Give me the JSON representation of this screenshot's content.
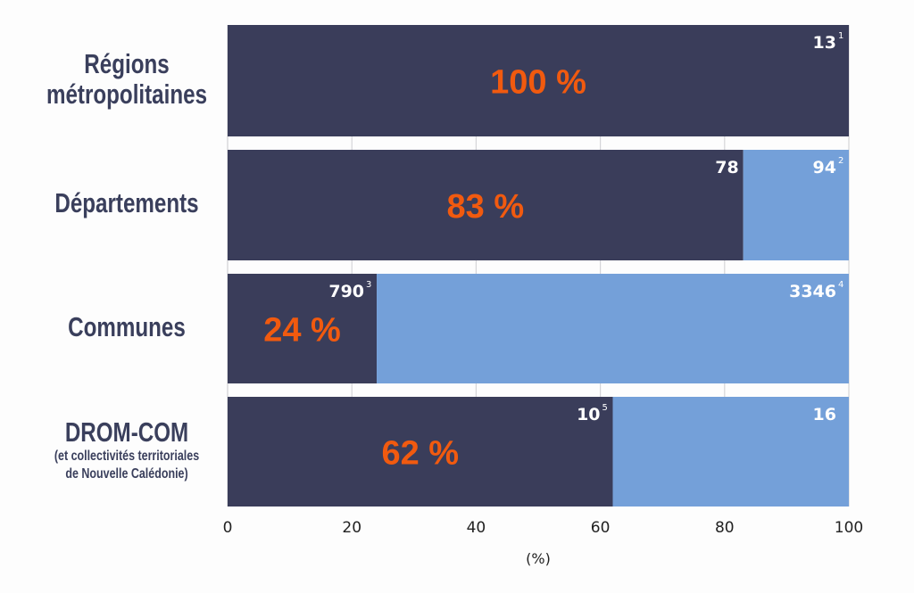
{
  "chart_data": {
    "type": "bar",
    "orientation": "horizontal",
    "stacked": true,
    "categories": [
      {
        "label": "Régions métropolitaines",
        "lines": [
          "Régions",
          "métropolitaines"
        ],
        "sub": []
      },
      {
        "label": "Départements",
        "lines": [
          "Départements"
        ],
        "sub": []
      },
      {
        "label": "Communes",
        "lines": [
          "Communes"
        ],
        "sub": []
      },
      {
        "label": "DROM-COM",
        "lines": [
          "DROM-COM"
        ],
        "sub": [
          "(et collectivités territoriales",
          "de Nouvelle Calédonie)"
        ]
      }
    ],
    "series": [
      {
        "name": "share",
        "values": [
          100,
          83,
          24,
          62
        ],
        "color": "#3a3d5a"
      },
      {
        "name": "remainder",
        "values": [
          0,
          17,
          76,
          38
        ],
        "color": "#74a0d9"
      }
    ],
    "pct_labels": [
      "100 %",
      "83 %",
      "24 %",
      "62 %"
    ],
    "count_labels": [
      {
        "count": "13",
        "count_sup": "1",
        "total": "",
        "total_sup": ""
      },
      {
        "count": "78",
        "count_sup": "",
        "total": "94",
        "total_sup": "2"
      },
      {
        "count": "790",
        "count_sup": "3",
        "total": "3346",
        "total_sup": "4"
      },
      {
        "count": "10",
        "count_sup": "5",
        "total": "16",
        "total_sup": ""
      }
    ],
    "xlim": [
      0,
      100
    ],
    "xticks": [
      "0",
      "20",
      "40",
      "60",
      "80",
      "100"
    ],
    "xlabel": "(%)",
    "ylabel": "",
    "title": "",
    "grid": true,
    "colors": {
      "accent": "#f15a0f",
      "grid": "#d5d5d8"
    }
  }
}
